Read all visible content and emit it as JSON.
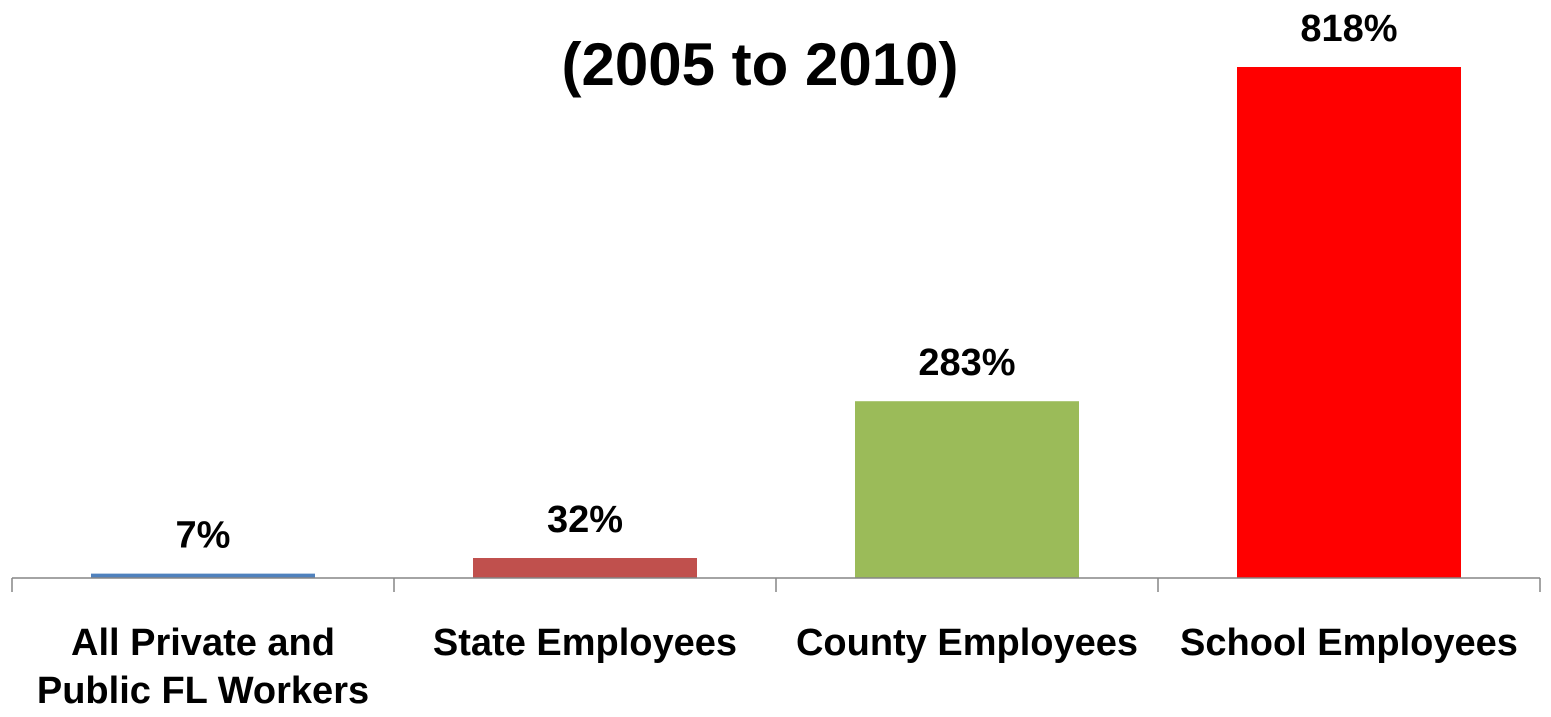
{
  "chart_data": {
    "type": "bar",
    "title": "(2005 to 2010)",
    "xlabel": "",
    "ylabel": "",
    "categories": [
      [
        "All Private and",
        "Public FL Workers"
      ],
      [
        "State Employees"
      ],
      [
        "County Employees"
      ],
      [
        "School Employees"
      ]
    ],
    "values": [
      7,
      32,
      283,
      818
    ],
    "data_labels": [
      "7%",
      "32%",
      "283%",
      "818%"
    ],
    "ylim": [
      0,
      818
    ],
    "grid": false,
    "legend": "none",
    "colors": [
      "#4F81BD",
      "#C0504D",
      "#9BBB59",
      "#FF0000"
    ]
  }
}
